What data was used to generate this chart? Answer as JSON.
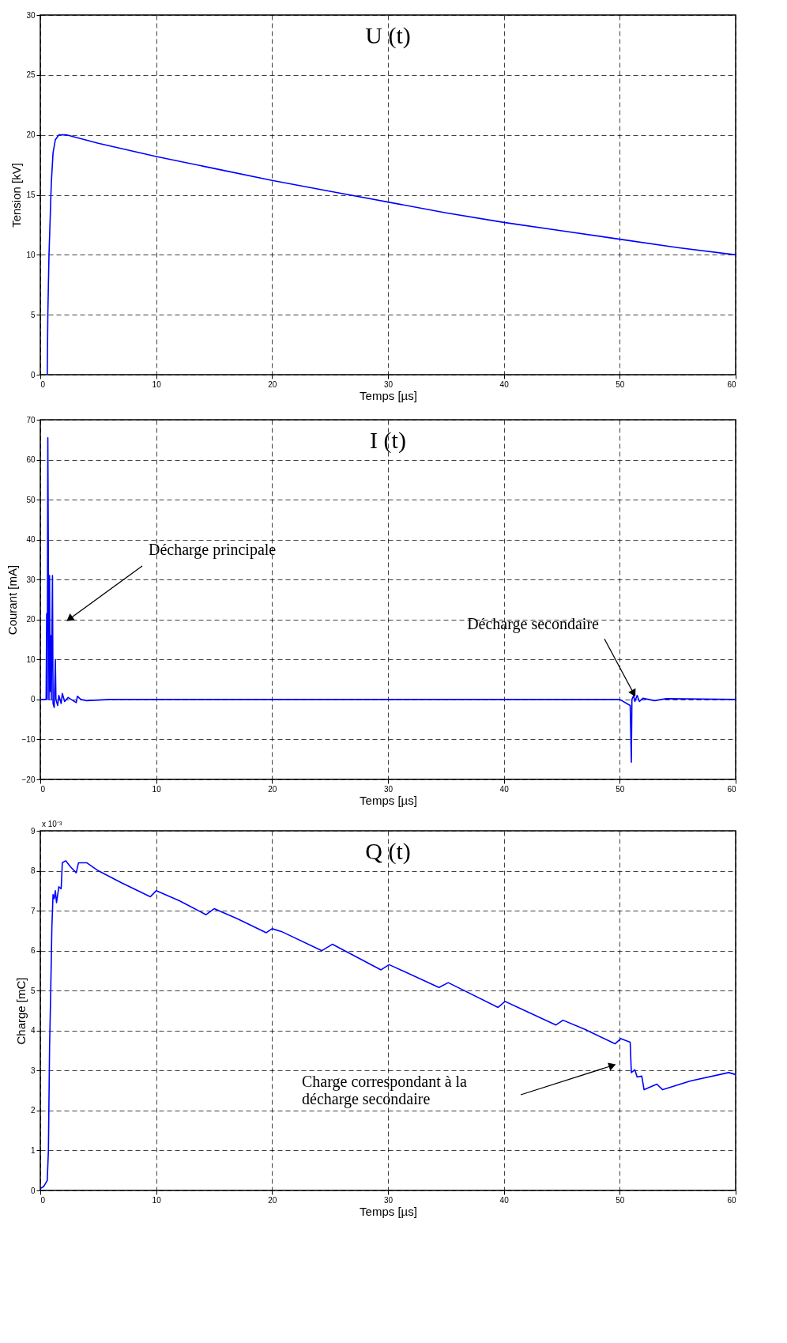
{
  "chart_data": [
    {
      "type": "line",
      "title": "U (t)",
      "xlabel": "Temps  [µs]",
      "ylabel": "Tension [kV]",
      "xlim": [
        0,
        60
      ],
      "xticks": [
        0,
        10,
        20,
        30,
        40,
        50,
        60
      ],
      "ylim": [
        0,
        30
      ],
      "yticks": [
        0,
        5,
        10,
        15,
        20,
        25,
        30
      ],
      "grid": true,
      "line_style": "solid",
      "marker": "none",
      "series": [
        {
          "color": "#0000ff",
          "x": [
            0.6,
            0.65,
            0.75,
            0.85,
            0.95,
            1.1,
            1.3,
            1.6,
            2.3,
            5,
            10,
            15,
            20,
            25,
            30,
            35,
            40,
            45,
            50,
            55,
            60
          ],
          "values": [
            0,
            5,
            10,
            13,
            16,
            18.5,
            19.6,
            20,
            20,
            19.3,
            18.2,
            17.2,
            16.2,
            15.3,
            14.4,
            13.5,
            12.7,
            12,
            11.3,
            10.6,
            10
          ]
        }
      ]
    },
    {
      "type": "line",
      "title": "I (t)",
      "xlabel": "Temps  [µs]",
      "ylabel": "Courant  [mA]",
      "xlim": [
        0,
        60
      ],
      "xticks": [
        0,
        10,
        20,
        30,
        40,
        50,
        60
      ],
      "ylim": [
        -20,
        70
      ],
      "yticks": [
        -20,
        -10,
        0,
        10,
        20,
        30,
        40,
        50,
        60,
        70
      ],
      "grid": true,
      "line_style": "solid",
      "marker": "none",
      "annotations": [
        "Décharge principale",
        {
          "text": "Décharge secondaire",
          "x": 51.2,
          "y": 1.5
        }
      ],
      "series": [
        {
          "color": "#0000ff",
          "x": [
            0,
            0.5,
            0.55,
            0.6,
            0.65,
            0.75,
            0.8,
            0.85,
            0.9,
            0.95,
            1.05,
            1.1,
            1.2,
            1.3,
            1.35,
            1.5,
            1.6,
            1.8,
            1.9,
            2.1,
            2.4,
            3.1,
            3.2,
            3.5,
            4,
            6,
            8,
            10,
            15,
            20,
            25,
            30,
            35,
            40,
            45,
            50,
            50.9,
            51.0,
            51.05,
            51.2,
            51.3,
            51.5,
            51.7,
            52,
            53,
            54,
            60
          ],
          "values": [
            0,
            0,
            21.5,
            0,
            65.5,
            0,
            31,
            2,
            16,
            0,
            31,
            -1,
            -2,
            10,
            0,
            -1.5,
            1,
            -1,
            1.5,
            -0.5,
            0.5,
            -0.8,
            0.8,
            0,
            -0.3,
            0,
            0,
            0,
            0,
            0,
            0,
            0,
            0,
            0,
            0,
            0,
            -1.5,
            -15.7,
            0,
            1,
            -0.5,
            1,
            -0.5,
            0.3,
            -0.3,
            0.2,
            0
          ]
        }
      ]
    },
    {
      "type": "line",
      "title": "Q (t)",
      "xlabel": "Temps  [µs]",
      "ylabel": "Charge  [mC]",
      "xlim": [
        0,
        60
      ],
      "xticks": [
        0,
        10,
        20,
        30,
        40,
        50,
        60
      ],
      "ylim": [
        0,
        9
      ],
      "yticks": [
        0,
        1,
        2,
        3,
        4,
        5,
        6,
        7,
        8,
        9
      ],
      "grid": true,
      "line_style": "solid",
      "marker": "none",
      "annotations": [
        "x 10⁻³",
        "Charge correspondant à la\ndécharge secondaire"
      ],
      "series": [
        {
          "color": "#0000ff",
          "x": [
            0,
            0.3,
            0.6,
            0.7,
            0.8,
            0.9,
            1.0,
            1.1,
            1.2,
            1.3,
            1.4,
            1.6,
            1.8,
            1.9,
            2.2,
            2.6,
            3.1,
            3.3,
            4,
            5,
            7,
            9.5,
            10,
            12,
            14.3,
            15,
            17,
            19.5,
            20,
            20.8,
            24.3,
            25.2,
            29.4,
            30.1,
            34.4,
            35.2,
            39.5,
            40.1,
            44.5,
            45.1,
            47,
            49.6,
            50.1,
            50.9,
            51.0,
            51.3,
            51.5,
            51.9,
            52.1,
            53.2,
            53.7,
            56.1,
            59.4,
            60
          ],
          "values": [
            0.05,
            0.1,
            0.25,
            1,
            3.6,
            5,
            6.6,
            7.4,
            7.3,
            7.5,
            7.2,
            7.6,
            7.55,
            8.2,
            8.25,
            8.1,
            7.95,
            8.2,
            8.2,
            8.0,
            7.7,
            7.35,
            7.5,
            7.25,
            6.9,
            7.05,
            6.8,
            6.45,
            6.55,
            6.48,
            6.0,
            6.16,
            5.52,
            5.65,
            5.08,
            5.2,
            4.58,
            4.73,
            4.14,
            4.26,
            4.03,
            3.67,
            3.8,
            3.71,
            2.95,
            3.02,
            2.84,
            2.86,
            2.52,
            2.66,
            2.52,
            2.74,
            2.95,
            2.9
          ]
        }
      ]
    }
  ]
}
